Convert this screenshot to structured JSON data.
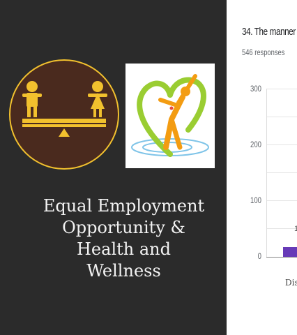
{
  "left_panel": {
    "title_lines": [
      "Equal Employment",
      "Opportunity &",
      "Health and",
      "Wellness"
    ],
    "logo_equality_icon": "balance-seesaw-boy-girl-icon",
    "logo_wellness_icon": "heart-person-wellness-icon",
    "colors": {
      "background": "#2b2b2b",
      "logo_circle": "#4a2a1e",
      "logo_accent": "#f2c12e"
    }
  },
  "chart": {
    "question": "34. The manner",
    "responses": "546 responses",
    "yticks": [
      "300",
      "200",
      "100",
      "0"
    ],
    "bar_label_partial": "1",
    "x_label_partial": "Dis",
    "bar_color": "#673ab7"
  }
}
